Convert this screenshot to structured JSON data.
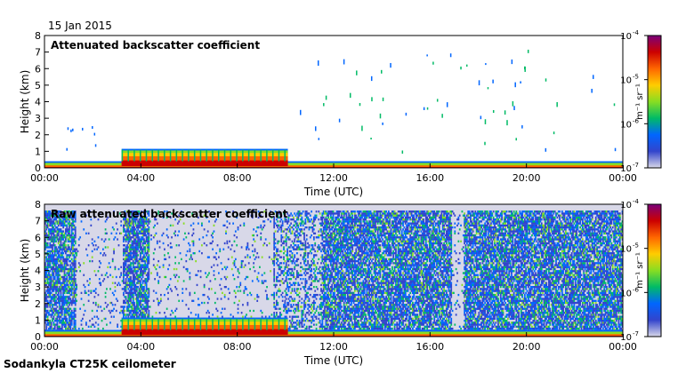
{
  "date_label": "15 Jan 2015",
  "footer_label": "Sodankyla CT25K ceilometer",
  "colorbar": {
    "unit_label": "m⁻¹ sr⁻¹",
    "tick_mantissa": "10",
    "tick_exponents": [
      "-4",
      "-5",
      "-6",
      "-7"
    ],
    "colors": [
      "#7a007a",
      "#cc0000",
      "#ff6600",
      "#ffcc00",
      "#88dd22",
      "#00bb66",
      "#0066ff",
      "#3344cc",
      "#d8d8e8"
    ]
  },
  "chart_data": [
    {
      "type": "heatmap",
      "title": "Attenuated backscatter coefficient",
      "xlabel": "Time (UTC)",
      "ylabel": "Height (km)",
      "x_ticks": [
        "00:00",
        "04:00",
        "08:00",
        "12:00",
        "16:00",
        "20:00",
        "00:00"
      ],
      "y_ticks": [
        "0",
        "1",
        "2",
        "3",
        "4",
        "5",
        "6",
        "7",
        "8"
      ],
      "xlim_hours": [
        0,
        24
      ],
      "ylim_km": [
        0,
        8
      ],
      "color_scale": "log",
      "clim": [
        1e-07,
        0.0001
      ],
      "features": {
        "surface_layer_top_km": 0.3,
        "elevated_layer": {
          "start_hour": 3.2,
          "end_hour": 10.1,
          "top_km": 1.15
        },
        "scattered_cloud_hits_max_km": 7.2
      }
    },
    {
      "type": "heatmap",
      "title": "Raw attenuated backscatter coefficient",
      "xlabel": "Time (UTC)",
      "ylabel": "Height (km)",
      "x_ticks": [
        "00:00",
        "04:00",
        "08:00",
        "12:00",
        "16:00",
        "20:00",
        "00:00"
      ],
      "y_ticks": [
        "0",
        "1",
        "2",
        "3",
        "4",
        "5",
        "6",
        "7",
        "8"
      ],
      "xlim_hours": [
        0,
        24
      ],
      "ylim_km": [
        0,
        8
      ],
      "color_scale": "log",
      "clim": [
        1e-07,
        0.0001
      ],
      "features": {
        "noise_top_km": 7.6,
        "quiet_periods_hours": [
          [
            1.3,
            3.2
          ],
          [
            4.3,
            9.5
          ],
          [
            16.9,
            17.4
          ]
        ],
        "elevated_layer": {
          "start_hour": 3.2,
          "end_hour": 10.1,
          "top_km": 1.15
        }
      }
    }
  ]
}
